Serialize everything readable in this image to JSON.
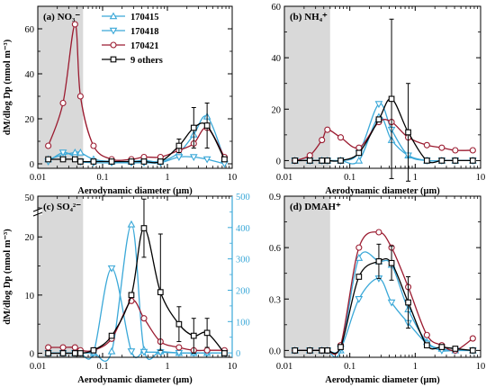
{
  "colors": {
    "170415": "#3aa8d8",
    "170418": "#3aa8d8",
    "170421": "#9b1b30",
    "others": "#000000",
    "shade": "#d9d9d9",
    "right_axis": "#3aa8d8"
  },
  "shared": {
    "xlabel": "Aerodynamic diameter (μm)",
    "ylabel": "dM/dlog Dp (nmol m⁻³)",
    "xticks": [
      "0.01",
      "0.1",
      "1",
      "10"
    ],
    "legend": [
      "170415",
      "170418",
      "170421",
      "9 others"
    ]
  },
  "chart_data": [
    {
      "type": "line",
      "panel": "a",
      "title": "(a) NO₃⁻",
      "xscale": "log",
      "xlim": [
        0.01,
        10
      ],
      "ylim": [
        -2,
        70
      ],
      "yticks": [
        0,
        20,
        40,
        60
      ],
      "shaded_x": [
        0.01,
        0.05
      ],
      "legend_placement": "top-center",
      "x": [
        0.0145,
        0.0245,
        0.0375,
        0.0455,
        0.0725,
        0.138,
        0.278,
        0.435,
        0.782,
        1.51,
        2.55,
        4.1,
        7.6
      ],
      "series": [
        {
          "name": "170415",
          "marker": "triangle-up",
          "values": [
            2,
            4,
            5,
            5,
            2,
            1,
            1,
            1.5,
            1,
            5,
            13,
            21,
            2
          ]
        },
        {
          "name": "170418",
          "marker": "triangle-down",
          "values": [
            1,
            5,
            3,
            1,
            0.5,
            0.5,
            0.5,
            0.5,
            0.5,
            3,
            3,
            2,
            0
          ]
        },
        {
          "name": "170421",
          "marker": "circle",
          "values": [
            8,
            27,
            62,
            30,
            8,
            2,
            2,
            3,
            3,
            6,
            9,
            16,
            3
          ]
        },
        {
          "name": "9 others",
          "marker": "square",
          "values": [
            2,
            2,
            2,
            1,
            1,
            1,
            1,
            1,
            1,
            8,
            16,
            17,
            2
          ],
          "err": [
            0,
            0,
            0,
            0,
            0,
            0,
            0,
            0,
            0,
            3,
            9,
            10,
            0
          ]
        }
      ]
    },
    {
      "type": "line",
      "panel": "b",
      "title": "(b) NH₄⁺",
      "xscale": "log",
      "xlim": [
        0.01,
        10
      ],
      "ylim": [
        -3,
        60
      ],
      "yticks": [
        0,
        20,
        40,
        60
      ],
      "shaded_x": [
        0.01,
        0.05
      ],
      "x": [
        0.0145,
        0.0245,
        0.0375,
        0.0455,
        0.0725,
        0.138,
        0.278,
        0.435,
        0.782,
        1.51,
        2.55,
        4.1,
        7.6
      ],
      "series": [
        {
          "name": "170415",
          "marker": "triangle-up",
          "values": [
            0,
            0,
            0,
            0,
            0,
            0,
            17,
            8,
            2,
            0,
            0,
            0,
            0
          ]
        },
        {
          "name": "170418",
          "marker": "triangle-down",
          "values": [
            0,
            0,
            0,
            0,
            0,
            3,
            22,
            12,
            2,
            0,
            0,
            0,
            0
          ]
        },
        {
          "name": "170421",
          "marker": "circle",
          "values": [
            0,
            2,
            8,
            12,
            9,
            5,
            15,
            15,
            9,
            6,
            5,
            4,
            4
          ]
        },
        {
          "name": "9 others",
          "marker": "square",
          "values": [
            0,
            0,
            0,
            0,
            0,
            3,
            16,
            24,
            11,
            0,
            0,
            0,
            0
          ],
          "err": [
            0,
            0,
            0,
            0,
            0,
            0,
            0,
            31,
            19,
            0,
            0,
            0,
            0
          ]
        }
      ]
    },
    {
      "type": "line",
      "panel": "c",
      "title": "(c) SO₄²⁻",
      "xscale": "log",
      "xlim": [
        0.01,
        10
      ],
      "ylim": [
        -0.7,
        27
      ],
      "yticks": [
        0,
        10,
        20
      ],
      "ybreak": true,
      "ytop_label": "50",
      "y2lim": [
        -14,
        500
      ],
      "y2ticks": [
        0,
        100,
        200,
        300,
        400,
        500
      ],
      "shaded_x": [
        0.01,
        0.05
      ],
      "x": [
        0.0145,
        0.0245,
        0.0375,
        0.0455,
        0.0725,
        0.138,
        0.278,
        0.435,
        0.782,
        1.51,
        2.55,
        4.1,
        7.6
      ],
      "series": [
        {
          "name": "170415",
          "axis": "right",
          "marker": "triangle-up",
          "values": [
            0,
            0,
            0,
            0,
            0,
            5,
            410,
            10,
            5,
            0,
            0,
            0,
            0
          ]
        },
        {
          "name": "170418",
          "axis": "right",
          "marker": "triangle-down",
          "values": [
            0,
            0,
            0,
            0,
            0,
            270,
            5,
            3,
            2,
            0,
            0,
            0,
            0
          ]
        },
        {
          "name": "170421",
          "axis": "left",
          "marker": "circle",
          "values": [
            1,
            1,
            1,
            0.5,
            0.5,
            2.5,
            9,
            6,
            2,
            1,
            0.5,
            0.5,
            0.5
          ]
        },
        {
          "name": "9 others",
          "axis": "left",
          "marker": "square",
          "values": [
            0,
            0,
            0,
            0,
            0.5,
            3,
            10,
            21.5,
            10.5,
            5,
            3,
            3.5,
            0
          ],
          "err": [
            0,
            0,
            0,
            0,
            0,
            0,
            0,
            5,
            10,
            3,
            3,
            2.5,
            0
          ]
        }
      ]
    },
    {
      "type": "line",
      "panel": "d",
      "title": "(d) DMAH⁺",
      "xscale": "log",
      "xlim": [
        0.01,
        10
      ],
      "ylim": [
        -0.04,
        0.9
      ],
      "yticks": [
        0.0,
        0.3,
        0.6,
        0.9
      ],
      "ytick_labels": [
        "0.0",
        "0.3",
        "0.6",
        "0.9"
      ],
      "shaded_x": [
        0.01,
        0.05
      ],
      "x": [
        0.0145,
        0.0245,
        0.0375,
        0.0455,
        0.0725,
        0.138,
        0.278,
        0.435,
        0.782,
        1.51,
        2.55,
        4.1,
        7.6
      ],
      "series": [
        {
          "name": "170415",
          "marker": "triangle-up",
          "values": [
            0,
            0,
            0,
            0,
            0,
            0.54,
            0.52,
            0.5,
            0.24,
            0.05,
            0.01,
            0,
            0
          ]
        },
        {
          "name": "170418",
          "marker": "triangle-down",
          "values": [
            0,
            0,
            0,
            0,
            0.01,
            0.3,
            0.42,
            0.28,
            0.16,
            0.04,
            0,
            0,
            0
          ]
        },
        {
          "name": "170421",
          "marker": "circle",
          "values": [
            0,
            0,
            0,
            0,
            0.03,
            0.6,
            0.69,
            0.6,
            0.37,
            0.09,
            0.03,
            0,
            0.07
          ]
        },
        {
          "name": "9 others",
          "marker": "square",
          "values": [
            0,
            0,
            0,
            0,
            0.02,
            0.43,
            0.52,
            0.51,
            0.28,
            0.03,
            0.02,
            0.01,
            0
          ],
          "err": [
            0,
            0,
            0,
            0,
            0,
            0,
            0.1,
            0.1,
            0.15,
            0,
            0,
            0,
            0
          ]
        }
      ]
    }
  ]
}
